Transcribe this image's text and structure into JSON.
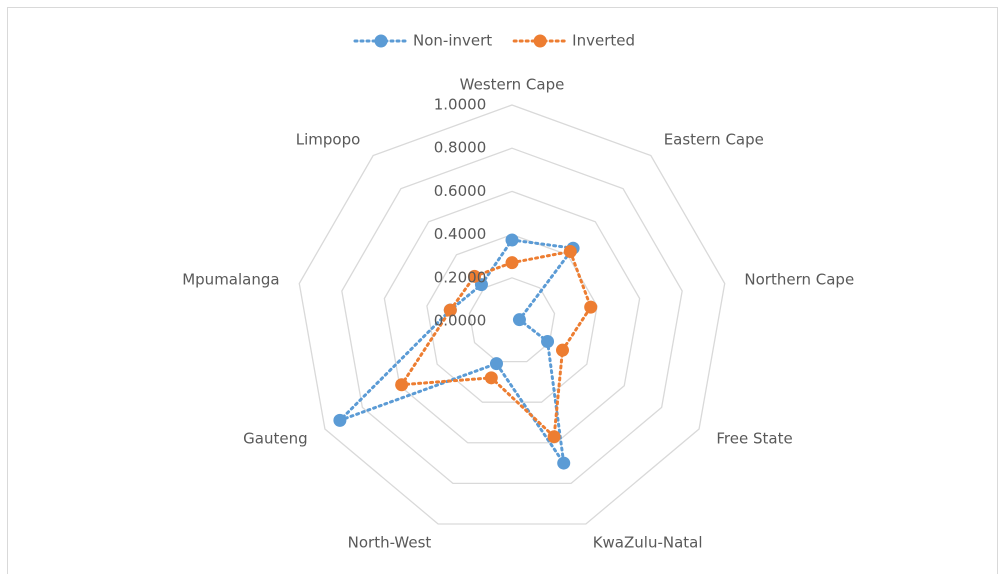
{
  "chart_data": {
    "type": "radar",
    "categories": [
      "Western Cape",
      "Eastern Cape",
      "Northern Cape",
      "Free State",
      "KwaZulu-Natal",
      "North-West",
      "Gauteng",
      "Mpumalanga",
      "Limpopo"
    ],
    "series": [
      {
        "name": "Non-invert",
        "color": "#5b9bd5",
        "values": [
          0.375,
          0.44,
          0.035,
          0.19,
          0.7,
          0.21,
          0.92,
          0.29,
          0.22
        ]
      },
      {
        "name": "Inverted",
        "color": "#ed7d31",
        "values": [
          0.27,
          0.42,
          0.37,
          0.27,
          0.57,
          0.28,
          0.59,
          0.29,
          0.27
        ]
      }
    ],
    "ylim": [
      0,
      1
    ],
    "yticks": [
      {
        "value": 0,
        "label": "0.0000"
      },
      {
        "value": 0.2,
        "label": "0.2000"
      },
      {
        "value": 0.4,
        "label": "0.4000"
      },
      {
        "value": 0.6,
        "label": "0.6000"
      },
      {
        "value": 0.8,
        "label": "0.8000"
      },
      {
        "value": 1,
        "label": "1.0000"
      }
    ],
    "grid": true,
    "legend": "top"
  }
}
